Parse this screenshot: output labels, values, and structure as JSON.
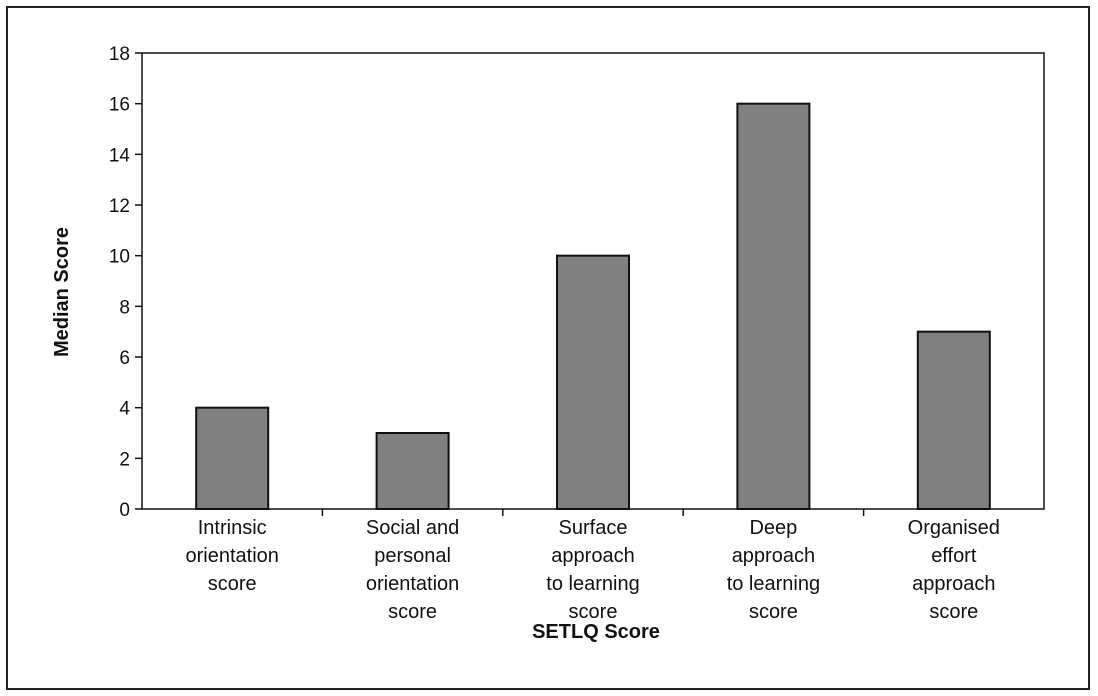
{
  "chart_data": {
    "type": "bar",
    "categories": [
      [
        "Intrinsic",
        "orientation",
        "score"
      ],
      [
        "Social and",
        "personal",
        "orientation",
        "score"
      ],
      [
        "Surface",
        "approach",
        "to learning",
        "score"
      ],
      [
        "Deep",
        "approach",
        "to learning",
        "score"
      ],
      [
        "Organised",
        "effort",
        "approach",
        "score"
      ]
    ],
    "values": [
      4,
      3,
      10,
      16,
      7
    ],
    "xlabel": "SETLQ Score",
    "ylabel": "Median Score",
    "ylim": [
      0,
      18
    ],
    "yticks": [
      0,
      2,
      4,
      6,
      8,
      10,
      12,
      14,
      16,
      18
    ],
    "grid": false,
    "legend": "none",
    "colors": {
      "bar_fill": "#808080",
      "bar_stroke": "#111111",
      "axis": "#111111"
    }
  }
}
